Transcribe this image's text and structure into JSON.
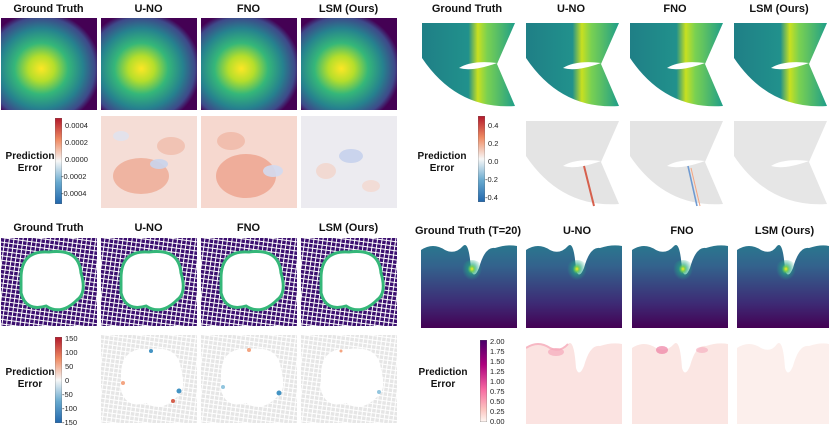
{
  "panels": {
    "top_left": {
      "headers": [
        "Ground Truth",
        "U-NO",
        "FNO",
        "LSM (Ours)"
      ],
      "row_label": [
        "Prediction",
        "Error"
      ],
      "colorbar_ticks": [
        "0.0004",
        "0.0002",
        "0.0000",
        "-0.0002",
        "-0.0004"
      ]
    },
    "top_right": {
      "headers": [
        "Ground Truth",
        "U-NO",
        "FNO",
        "LSM (Ours)"
      ],
      "row_label": [
        "Prediction",
        "Error"
      ],
      "colorbar_ticks": [
        "0.4",
        "0.2",
        "0.0",
        "-0.2",
        "-0.4"
      ]
    },
    "bottom_left": {
      "headers": [
        "Ground Truth",
        "U-NO",
        "FNO",
        "LSM (Ours)"
      ],
      "row_label": [
        "Prediction",
        "Error"
      ],
      "colorbar_ticks": [
        "150",
        "100",
        "50",
        "0",
        "-50",
        "-100",
        "-150"
      ]
    },
    "bottom_right": {
      "headers": [
        "Ground Truth (T=20)",
        "U-NO",
        "FNO",
        "LSM (Ours)"
      ],
      "row_label": [
        "Prediction",
        "Error"
      ],
      "colorbar_ticks": [
        "2.00",
        "1.75",
        "1.50",
        "1.25",
        "1.00",
        "0.75",
        "0.50",
        "0.25",
        "0.00"
      ]
    }
  },
  "colors": {
    "viridis_dark": "#3b0f6f",
    "viridis_teal": "#21918c",
    "viridis_yellow": "#fde725",
    "error_red": "#b2182b",
    "error_blue": "#2166ac",
    "error_pink": "#c51b7d"
  }
}
